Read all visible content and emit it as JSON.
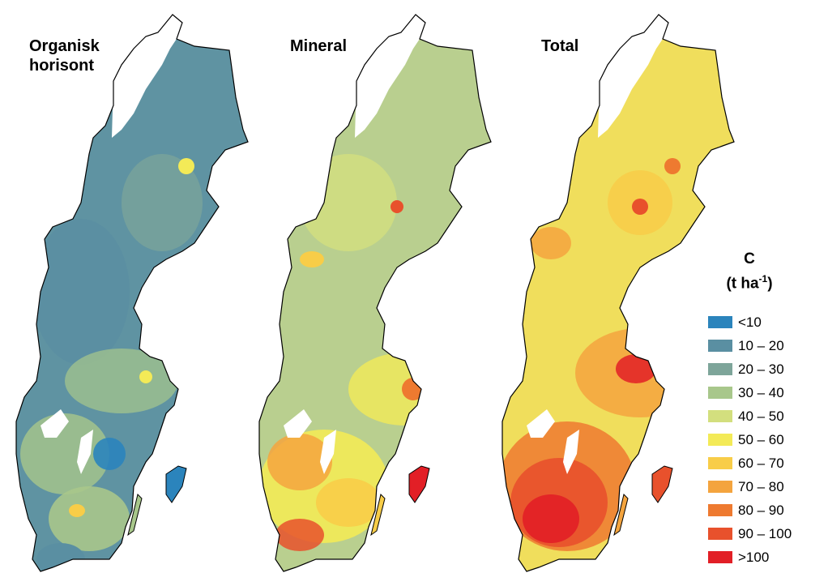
{
  "panels": [
    {
      "title": "Organisk horisont",
      "base": "#5f93a2",
      "tint": "#7fa89a"
    },
    {
      "title": "Mineral",
      "base": "#b9cf8f",
      "tint": "#d9df7a"
    },
    {
      "title": "Total",
      "base": "#f0de5c",
      "tint": "#f5b54a"
    }
  ],
  "legend": {
    "title": "C",
    "unit_base": "(t ha",
    "unit_exp": "-1",
    "unit_close": ")",
    "classes": [
      {
        "label": "<10",
        "color": "#2b84bc"
      },
      {
        "label": "10 – 20",
        "color": "#5a8fa2"
      },
      {
        "label": "20 – 30",
        "color": "#7ea59a"
      },
      {
        "label": "30 – 40",
        "color": "#a8c78b"
      },
      {
        "label": "40 – 50",
        "color": "#d3df7e"
      },
      {
        "label": "50 – 60",
        "color": "#f3ea57"
      },
      {
        "label": "60 – 70",
        "color": "#f8cd48"
      },
      {
        "label": "70 – 80",
        "color": "#f4a43e"
      },
      {
        "label": "80 – 90",
        "color": "#ee7a30"
      },
      {
        "label": "90 – 100",
        "color": "#e8512c"
      },
      {
        "label": ">100",
        "color": "#e21f26"
      }
    ]
  },
  "mountain_color": "#ffffff"
}
